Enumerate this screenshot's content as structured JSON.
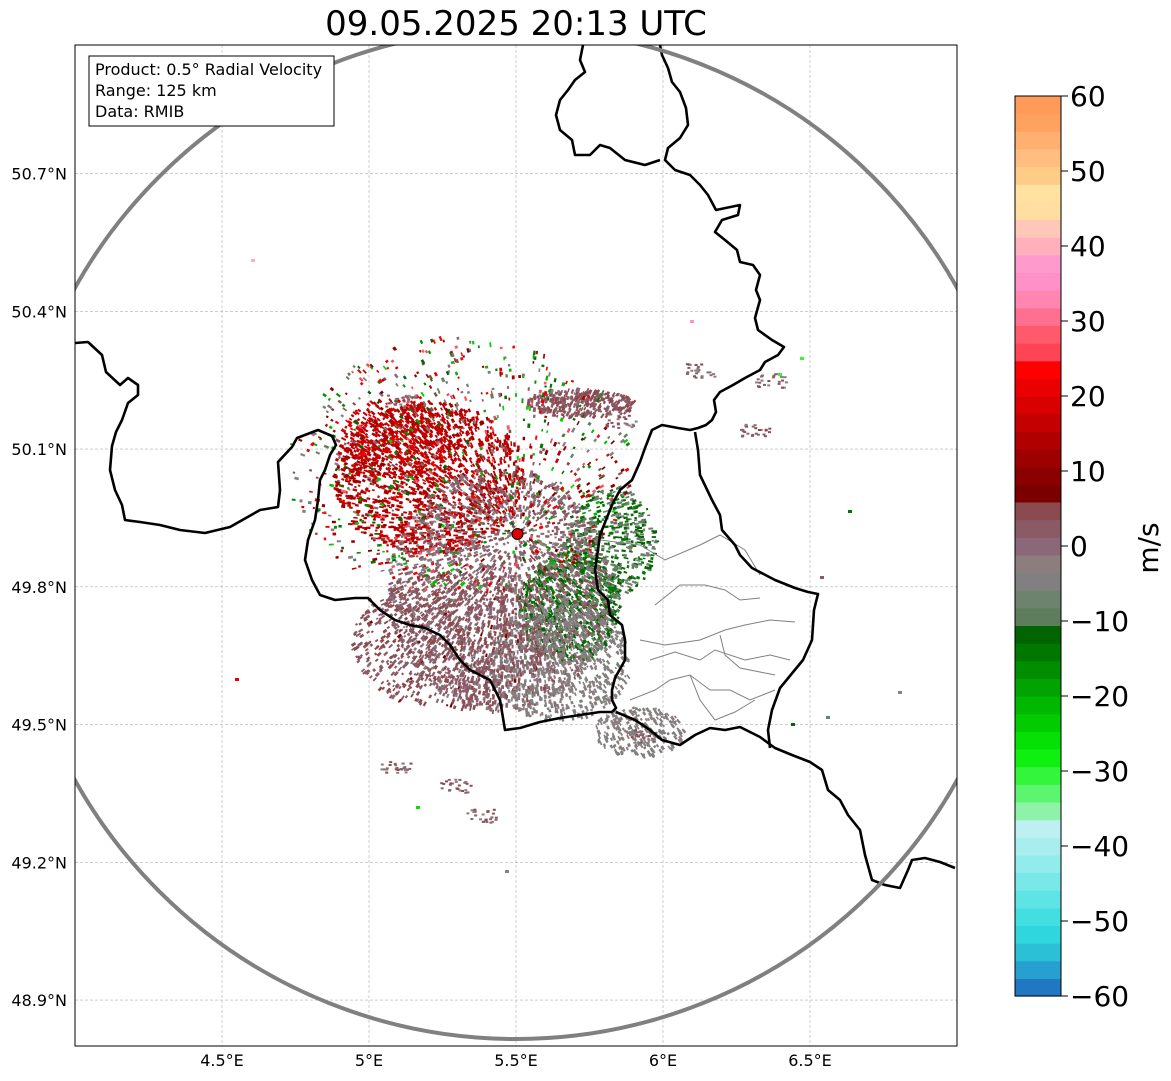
{
  "title": "09.05.2025 20:13 UTC",
  "info_box": {
    "product": "Product: 0.5° Radial Velocity",
    "range": "Range: 125 km",
    "data": "Data: RMIB"
  },
  "map": {
    "lon_range": [
      4.0,
      7.0
    ],
    "lat_range": [
      48.8,
      50.98
    ],
    "lon_ticks": [
      {
        "value": 4.5,
        "label": "4.5°E"
      },
      {
        "value": 5.0,
        "label": "5°E"
      },
      {
        "value": 5.5,
        "label": "5.5°E"
      },
      {
        "value": 6.0,
        "label": "6°E"
      },
      {
        "value": 6.5,
        "label": "6.5°E"
      }
    ],
    "lat_ticks": [
      {
        "value": 50.7,
        "label": "50.7°N"
      },
      {
        "value": 50.4,
        "label": "50.4°N"
      },
      {
        "value": 50.1,
        "label": "50.1°N"
      },
      {
        "value": 49.8,
        "label": "49.8°N"
      },
      {
        "value": 49.5,
        "label": "49.5°N"
      },
      {
        "value": 49.2,
        "label": "49.2°N"
      },
      {
        "value": 48.9,
        "label": "48.9°N"
      }
    ],
    "gridlines": true,
    "radar_site": {
      "lon": 5.505,
      "lat": 49.915,
      "color": "#e00000"
    },
    "range_ring_color": "#808080",
    "border_color": "#000000",
    "region_border_color": "#808080"
  },
  "colorbar": {
    "label": "m/s",
    "vmin": -60,
    "vmax": 60,
    "ticks": [
      {
        "value": 60,
        "label": "60"
      },
      {
        "value": 50,
        "label": "50"
      },
      {
        "value": 40,
        "label": "40"
      },
      {
        "value": 30,
        "label": "30"
      },
      {
        "value": 20,
        "label": "20"
      },
      {
        "value": 10,
        "label": "10"
      },
      {
        "value": 0,
        "label": "0"
      },
      {
        "value": -10,
        "label": "−10"
      },
      {
        "value": -20,
        "label": "−20"
      },
      {
        "value": -30,
        "label": "−30"
      },
      {
        "value": -40,
        "label": "−40"
      },
      {
        "value": -50,
        "label": "−50"
      },
      {
        "value": -60,
        "label": "−60"
      }
    ],
    "bands": [
      "#1f78c1",
      "#27a0cf",
      "#2cc0d7",
      "#2fd7dc",
      "#43dfe0",
      "#5ee4e4",
      "#78e8e8",
      "#92ecec",
      "#a8eeee",
      "#bdf1f1",
      "#8ef2a8",
      "#5cf570",
      "#32f53c",
      "#10f010",
      "#05e005",
      "#00cc00",
      "#00b800",
      "#00a300",
      "#008e00",
      "#007800",
      "#006400",
      "#5d7d5d",
      "#6e836d",
      "#818080",
      "#8c7e7e",
      "#8a6878",
      "#8a5a66",
      "#8a4a4e",
      "#7a0000",
      "#8a0000",
      "#9e0000",
      "#b00000",
      "#c40000",
      "#d80000",
      "#ea0000",
      "#ff0000",
      "#ff4456",
      "#ff5a6c",
      "#ff7090",
      "#ff86b0",
      "#ff90c8",
      "#ff9acc",
      "#ffb0bc",
      "#ffc6ba",
      "#ffdea0",
      "#ffe2a0",
      "#ffcc88",
      "#ffbe80",
      "#ffb070",
      "#ffa260",
      "#ff9a58"
    ]
  },
  "chart_data": {
    "type": "heatmap",
    "title": "09.05.2025 20:13 UTC",
    "variable": "0.5° Radial Velocity",
    "units": "m/s",
    "range_km": 125,
    "xlim": [
      4.0,
      7.0
    ],
    "ylim": [
      48.8,
      50.98
    ],
    "value_range": [
      -60,
      60
    ],
    "echo_regions": [
      {
        "lon_range": [
          5.0,
          5.5
        ],
        "lat_range": [
          49.85,
          50.15
        ],
        "dominant_velocity": 15
      },
      {
        "lon_range": [
          5.55,
          5.85
        ],
        "lat_range": [
          49.65,
          49.85
        ],
        "dominant_velocity": -10
      },
      {
        "lon_range": [
          5.35,
          5.65
        ],
        "lat_range": [
          49.6,
          49.95
        ],
        "dominant_velocity": 0
      },
      {
        "lon_range": [
          5.6,
          5.95
        ],
        "lat_range": [
          50.1,
          50.2
        ],
        "dominant_velocity": 3
      }
    ]
  }
}
